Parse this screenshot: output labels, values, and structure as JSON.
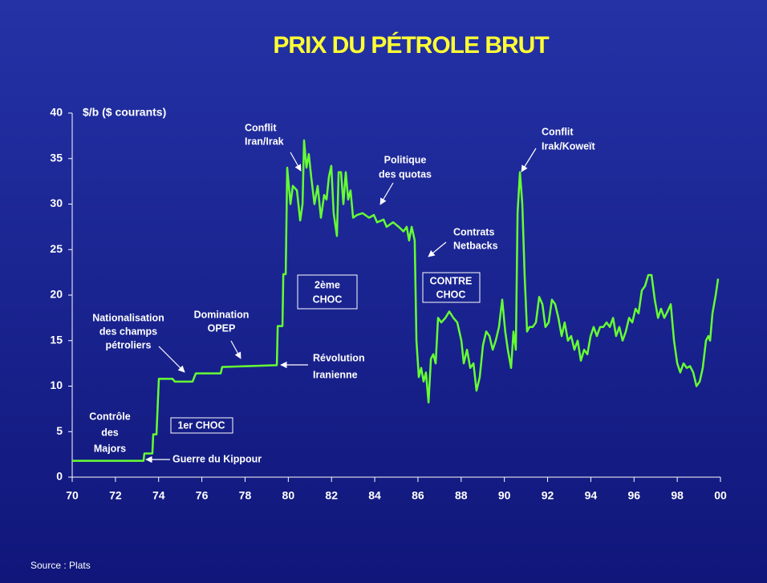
{
  "chart_data": {
    "type": "line",
    "title": "PRIX DU PÉTROLE BRUT",
    "y_label": "$/b ($ courants)",
    "source": "Source : Plats",
    "xlim": [
      70,
      100
    ],
    "xticks": [
      70,
      72,
      74,
      76,
      78,
      80,
      82,
      84,
      86,
      88,
      90,
      92,
      94,
      96,
      98,
      {
        "value": 100,
        "label": "00"
      }
    ],
    "ylim": [
      0,
      40
    ],
    "yticks": [
      0,
      5,
      10,
      15,
      20,
      25,
      30,
      35,
      40
    ],
    "series": [
      {
        "color": "#66ff33",
        "x": [
          70,
          73.3,
          73.34,
          73.71,
          73.75,
          73.9,
          74.01,
          74.64,
          74.75,
          75.57,
          75.72,
          76.87,
          76.94,
          79.47,
          79.51,
          79.73,
          79.77,
          79.88,
          79.95,
          80.1,
          80.21,
          80.4,
          80.55,
          80.66,
          80.73,
          80.84,
          80.95,
          81.06,
          81.21,
          81.36,
          81.51,
          81.66,
          81.77,
          81.88,
          81.99,
          82.1,
          82.25,
          82.33,
          82.44,
          82.55,
          82.66,
          82.77,
          82.88,
          83.0,
          83.18,
          83.44,
          83.74,
          83.96,
          84.11,
          84.41,
          84.55,
          84.85,
          85.11,
          85.33,
          85.48,
          85.59,
          85.71,
          85.85,
          85.93,
          86.04,
          86.15,
          86.26,
          86.37,
          86.49,
          86.6,
          86.71,
          86.82,
          86.93,
          87.08,
          87.27,
          87.45,
          87.64,
          87.82,
          88.01,
          88.12,
          88.27,
          88.42,
          88.57,
          88.71,
          88.86,
          89.01,
          89.16,
          89.31,
          89.46,
          89.6,
          89.75,
          89.9,
          90.04,
          90.16,
          90.31,
          90.42,
          90.53,
          90.61,
          90.72,
          90.83,
          90.94,
          91.05,
          91.16,
          91.31,
          91.46,
          91.61,
          91.76,
          91.9,
          92.05,
          92.2,
          92.35,
          92.5,
          92.65,
          92.79,
          92.94,
          93.09,
          93.24,
          93.39,
          93.54,
          93.69,
          93.84,
          93.99,
          94.13,
          94.28,
          94.43,
          94.58,
          94.73,
          94.88,
          95.03,
          95.17,
          95.32,
          95.47,
          95.62,
          95.77,
          95.92,
          96.07,
          96.21,
          96.36,
          96.51,
          96.66,
          96.81,
          96.96,
          97.11,
          97.25,
          97.4,
          97.55,
          97.7,
          97.85,
          98.0,
          98.14,
          98.29,
          98.44,
          98.59,
          98.74,
          98.89,
          99.04,
          99.18,
          99.33,
          99.44,
          99.52,
          99.63,
          99.78,
          99.89
        ],
        "values": [
          1.8,
          1.8,
          2.6,
          2.6,
          4.7,
          4.7,
          10.8,
          10.8,
          10.5,
          10.5,
          11.4,
          11.4,
          12.1,
          12.3,
          16.6,
          16.6,
          22.3,
          22.3,
          34,
          30,
          32,
          31.5,
          28.2,
          30,
          37,
          34,
          35.5,
          33,
          30,
          32,
          28.5,
          31,
          30.5,
          33,
          34.2,
          29,
          26.5,
          33.5,
          33.5,
          30,
          33.5,
          30.5,
          31.5,
          28.5,
          28.8,
          29,
          28.5,
          28.8,
          28,
          28.3,
          27.5,
          28,
          27.5,
          27,
          27.5,
          26,
          27.5,
          26,
          15,
          11,
          12,
          10.5,
          11.5,
          8.2,
          13,
          13.5,
          12.5,
          17.5,
          17,
          17.5,
          18.2,
          17.5,
          17,
          15,
          12.5,
          14,
          12,
          12.5,
          9.5,
          11,
          14.5,
          16,
          15.5,
          14,
          15,
          16.5,
          19.5,
          16,
          14,
          12,
          16,
          14,
          29,
          33.5,
          30,
          22,
          16,
          16.5,
          16.5,
          17,
          19.8,
          19,
          16.5,
          17,
          19.5,
          19,
          17.5,
          15.5,
          17,
          15,
          15.5,
          14,
          15,
          12.8,
          14,
          13.5,
          15.5,
          16.5,
          15.5,
          16.5,
          16.5,
          17,
          16.5,
          17.5,
          15.5,
          16.5,
          15,
          16,
          17.5,
          17,
          18.5,
          18,
          20.5,
          21,
          22.2,
          22.2,
          19.5,
          17.5,
          18.5,
          17.5,
          18.2,
          19,
          15,
          12.5,
          11.5,
          12.5,
          12,
          12.2,
          11.5,
          10,
          10.5,
          12,
          15,
          15.5,
          15,
          18,
          20,
          21.8
        ]
      }
    ],
    "annotations": [
      {
        "lines": [
          "Contrôle",
          "des",
          "Majors"
        ]
      },
      {
        "lines": [
          "Guerre du Kippour"
        ]
      },
      {
        "lines": [
          "Nationalisation",
          "des champs",
          "pétroliers"
        ]
      },
      {
        "lines": [
          "Domination",
          "OPEP"
        ]
      },
      {
        "lines": [
          "Révolution",
          "Iranienne"
        ]
      },
      {
        "lines": [
          "Conflit",
          "Iran/Irak"
        ]
      },
      {
        "lines": [
          "Politique",
          "des quotas"
        ]
      },
      {
        "lines": [
          "Contrats",
          "Netbacks"
        ]
      },
      {
        "lines": [
          "Conflit",
          "Irak/Koweït"
        ]
      },
      {
        "lines": [
          "2ème",
          "CHOC"
        ]
      },
      {
        "lines": [
          "1er CHOC"
        ]
      },
      {
        "lines": [
          "CONTRE",
          "CHOC"
        ]
      }
    ]
  }
}
